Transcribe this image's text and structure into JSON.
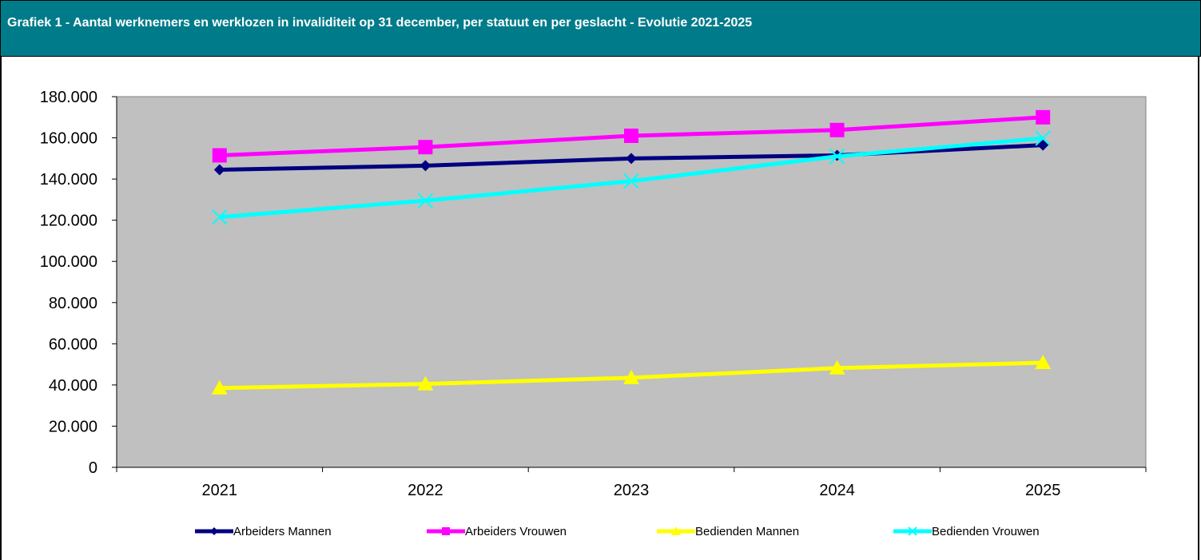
{
  "header": {
    "title": "Grafiek 1 - Aantal werknemers en werklozen in invaliditeit op 31 december, per statuut en per geslacht - Evolutie 2021-2025"
  },
  "colors": {
    "header_bg": "#007b8a",
    "plot_bg": "#c0c0c0"
  },
  "chart_data": {
    "type": "line",
    "title": "Grafiek 1 - Aantal werknemers en werklozen in invaliditeit op 31 december, per statuut en per geslacht - Evolutie 2021-2025",
    "xlabel": "",
    "ylabel": "",
    "x": [
      "2021",
      "2022",
      "2023",
      "2024",
      "2025"
    ],
    "ylim": [
      0,
      180000
    ],
    "yticks": [
      0,
      20000,
      40000,
      60000,
      80000,
      100000,
      120000,
      140000,
      160000,
      180000
    ],
    "ytick_labels": [
      "0",
      "20.000",
      "40.000",
      "60.000",
      "80.000",
      "100.000",
      "120.000",
      "140.000",
      "160.000",
      "180.000"
    ],
    "grid": false,
    "legend_position": "bottom",
    "series": [
      {
        "name": "Arbeiders Mannen",
        "color": "#000080",
        "marker": "diamond",
        "values": [
          144500,
          146500,
          150000,
          151500,
          156500
        ]
      },
      {
        "name": "Arbeiders Vrouwen",
        "color": "#ff00ff",
        "marker": "square",
        "values": [
          151500,
          155500,
          161000,
          163800,
          170000
        ]
      },
      {
        "name": "Bedienden Mannen",
        "color": "#ffff00",
        "marker": "triangle",
        "values": [
          38500,
          40500,
          43500,
          48200,
          50800
        ]
      },
      {
        "name": "Bedienden Vrouwen",
        "color": "#00ffff",
        "marker": "x",
        "values": [
          121500,
          129500,
          139000,
          151000,
          159800
        ]
      }
    ]
  }
}
